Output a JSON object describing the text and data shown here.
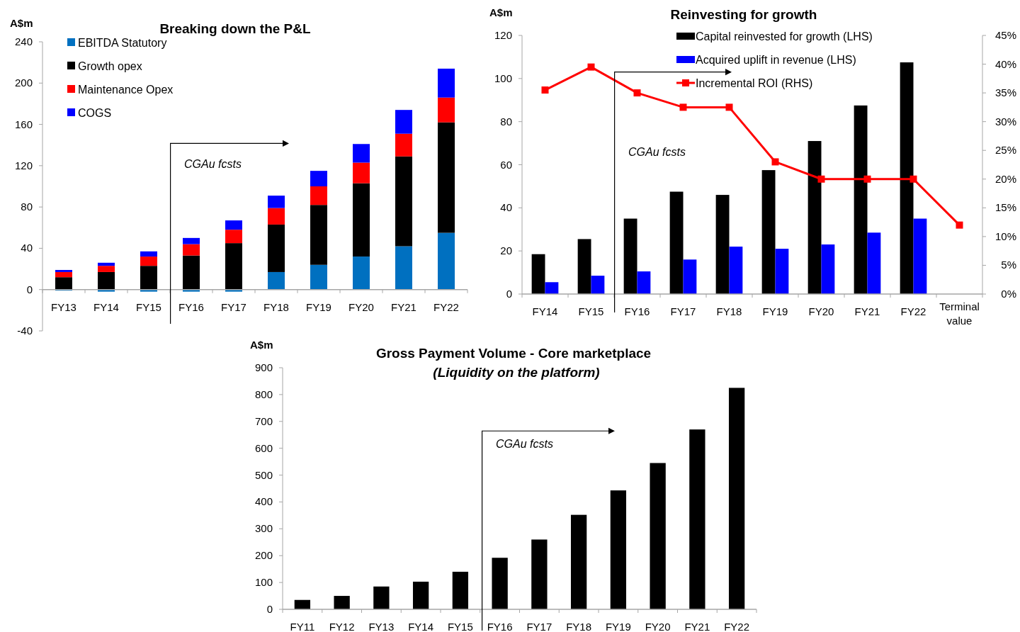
{
  "chart_data": [
    {
      "type": "bar",
      "title": "Breaking down the P&L",
      "ylabel": "A$m",
      "stacked": true,
      "legend": "top left",
      "grid": false,
      "categories": [
        "FY13",
        "FY14",
        "FY15",
        "FY16",
        "FY17",
        "FY18",
        "FY19",
        "FY20",
        "FY21",
        "FY22"
      ],
      "series": [
        {
          "name": "EBITDA Statutory",
          "color": "#0070c0",
          "values": [
            -1,
            -2,
            -2,
            -2,
            -2,
            17,
            24,
            32,
            42,
            55
          ]
        },
        {
          "name": "Growth opex",
          "color": "#000000",
          "values": [
            12,
            17,
            23,
            33,
            45,
            46,
            58,
            71,
            87,
            107
          ]
        },
        {
          "name": "Maintenance Opex",
          "color": "#ff0000",
          "values": [
            5,
            6,
            9,
            11,
            13,
            16,
            18,
            20,
            22,
            24
          ]
        },
        {
          "name": "COGS",
          "color": "#0000ff",
          "values": [
            2,
            3,
            5,
            6,
            9,
            12,
            15,
            18,
            23,
            28
          ]
        }
      ],
      "ylim": [
        -40,
        240
      ],
      "yticks": [
        -40,
        0,
        40,
        80,
        120,
        160,
        200,
        240
      ],
      "annotations": [
        "CGAu fcsts"
      ]
    },
    {
      "type": "bar",
      "title": "Reinvesting for growth",
      "ylabel": "A$m",
      "legend": "top",
      "grid": false,
      "marker": "square",
      "categories": [
        "FY14",
        "FY15",
        "FY16",
        "FY17",
        "FY18",
        "FY19",
        "FY20",
        "FY21",
        "FY22",
        "Terminal value"
      ],
      "series": [
        {
          "name": "Capital reinvested for growth (LHS)",
          "color": "#000000",
          "values": [
            18.5,
            25.5,
            35,
            47.5,
            46,
            57.5,
            71,
            87.5,
            107.5,
            null
          ]
        },
        {
          "name": "Acquired uplift in revenue (LHS)",
          "color": "#0000ff",
          "values": [
            5.5,
            8.5,
            10.5,
            16,
            22,
            21,
            23,
            28.5,
            35,
            null
          ]
        },
        {
          "name": "Incremental ROI (RHS)",
          "type": "line",
          "axis": "y2",
          "color": "#ff0000",
          "values": [
            35.5,
            39.5,
            35,
            32.5,
            32.5,
            23,
            20,
            20,
            20,
            12
          ]
        }
      ],
      "ylim": [
        0,
        120
      ],
      "yticks": [
        0,
        20,
        40,
        60,
        80,
        100,
        120
      ],
      "y2lim": [
        0,
        45
      ],
      "y2ticks": [
        {
          "value": 0,
          "label": "0%"
        },
        {
          "value": 5,
          "label": "5%"
        },
        {
          "value": 10,
          "label": "10%"
        },
        {
          "value": 15,
          "label": "15%"
        },
        {
          "value": 20,
          "label": "20%"
        },
        {
          "value": 25,
          "label": "25%"
        },
        {
          "value": 30,
          "label": "30%"
        },
        {
          "value": 35,
          "label": "35%"
        },
        {
          "value": 40,
          "label": "40%"
        },
        {
          "value": 45,
          "label": "45%"
        }
      ],
      "annotations": [
        "CGAu fcsts"
      ]
    },
    {
      "type": "bar",
      "title": "Gross Payment Volume - Core marketplace",
      "subtitle": "(Liquidity on the platform)",
      "ylabel": "A$m",
      "grid": false,
      "categories": [
        "FY11",
        "FY12",
        "FY13",
        "FY14",
        "FY15",
        "FY16",
        "FY17",
        "FY18",
        "FY19",
        "FY20",
        "FY21",
        "FY22"
      ],
      "series": [
        {
          "color": "#000000",
          "values": [
            35,
            50,
            85,
            103,
            140,
            192,
            260,
            352,
            443,
            545,
            670,
            825
          ]
        }
      ],
      "ylim": [
        0,
        900
      ],
      "yticks": [
        0,
        100,
        200,
        300,
        400,
        500,
        600,
        700,
        800,
        900
      ],
      "annotations": [
        "CGAu fcsts"
      ]
    }
  ]
}
